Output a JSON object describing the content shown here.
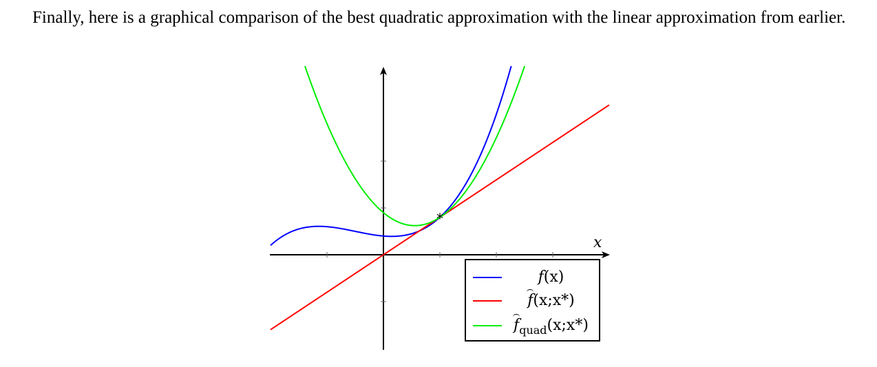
{
  "paragraph": "Finally, here is a graphical comparison of the best quadratic approximation with the linear approximation from earlier.",
  "chart_data": {
    "type": "line",
    "xlabel": "x",
    "ylabel": "",
    "xlim": [
      -2,
      4
    ],
    "ylim": [
      -1.6,
      3.4
    ],
    "expansion_point": {
      "x": 1,
      "y": 0.8,
      "marker": "*"
    },
    "series": [
      {
        "name": "f(x)",
        "color": "#0000ff",
        "function": "0.2*x^3 + 0.3*x^2 - 0.1*x + 0.4"
      },
      {
        "name": "f̂(x; x*)",
        "color": "#ff0000",
        "function": "0.8 + 0.8*(x - 1)"
      },
      {
        "name": "f̂quad(x; x*)",
        "color": "#00ee00",
        "function": "0.8 + 0.8*(x - 1) + 0.9*(x - 1)^2"
      }
    ],
    "legend": {
      "position": "bottom-right",
      "entries": [
        {
          "main": "f",
          "args": "(x)"
        },
        {
          "main": "f",
          "args": "(x;x*)",
          "hat": true
        },
        {
          "main": "f",
          "sub": "quad",
          "args": "(x;x*)",
          "hat": true
        }
      ]
    }
  },
  "colors": {
    "blue": "#0000ff",
    "red": "#ff0000",
    "green": "#00ee00"
  }
}
